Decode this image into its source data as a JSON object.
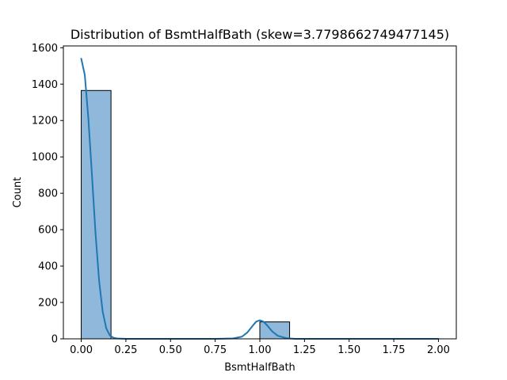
{
  "chart_data": {
    "type": "bar",
    "title": "Distribution of BsmtHalfBath (skew=3.7798662749477145)",
    "xlabel": "BsmtHalfBath",
    "ylabel": "Count",
    "xlim": [
      -0.1,
      2.1
    ],
    "ylim": [
      0,
      1610
    ],
    "x_ticks": [
      0.0,
      0.25,
      0.5,
      0.75,
      1.0,
      1.25,
      1.5,
      1.75,
      2.0
    ],
    "x_tick_labels": [
      "0.00",
      "0.25",
      "0.50",
      "0.75",
      "1.00",
      "1.25",
      "1.50",
      "1.75",
      "2.00"
    ],
    "y_ticks": [
      0,
      200,
      400,
      600,
      800,
      1000,
      1200,
      1400,
      1600
    ],
    "y_tick_labels": [
      "0",
      "200",
      "400",
      "600",
      "800",
      "1000",
      "1200",
      "1400",
      "1600"
    ],
    "bins": [
      {
        "x0": 0.0,
        "x1": 0.1667,
        "count": 1365
      },
      {
        "x0": 1.0,
        "x1": 1.1667,
        "count": 93
      }
    ],
    "kde": {
      "x": [
        0.0,
        0.02,
        0.04,
        0.06,
        0.08,
        0.1,
        0.12,
        0.14,
        0.16,
        0.18,
        0.2,
        0.25,
        0.3,
        0.5,
        0.75,
        0.85,
        0.9,
        0.93,
        0.96,
        0.98,
        1.0,
        1.02,
        1.04,
        1.07,
        1.1,
        1.15,
        1.2,
        1.3,
        1.5,
        1.75,
        2.0
      ],
      "y": [
        1540,
        1450,
        1210,
        900,
        580,
        320,
        150,
        58,
        19,
        6,
        2,
        0,
        0,
        0,
        0,
        2,
        12,
        35,
        72,
        95,
        102,
        95,
        75,
        40,
        17,
        3,
        0,
        0,
        0,
        0,
        0
      ]
    },
    "bar_color": "#8fb8db",
    "bar_edge_color": "#000000",
    "line_color": "#1f77b4",
    "grid": false,
    "legend": "none"
  }
}
